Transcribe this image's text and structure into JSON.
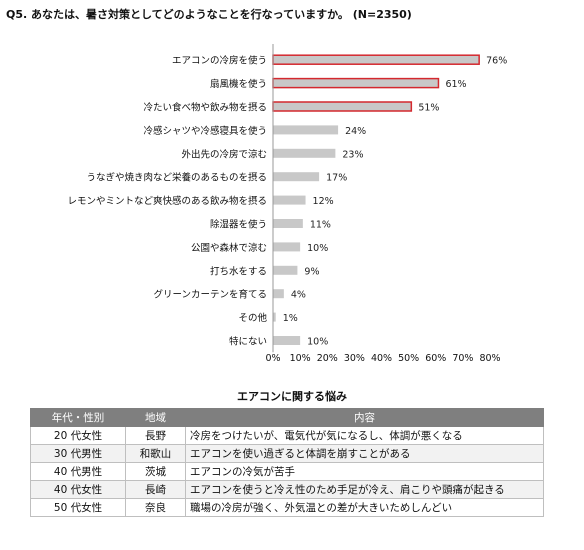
{
  "question": "Q5.  あなたは、暑さ対策としてどのようなことを行なっていますか。  (N=2350)",
  "chart_data": {
    "type": "bar",
    "orientation": "horizontal",
    "categories": [
      "エアコンの冷房を使う",
      "扇風機を使う",
      "冷たい食べ物や飲み物を摂る",
      "冷感シャツや冷感寝具を使う",
      "外出先の冷房で涼む",
      "うなぎや焼き肉など栄養のあるものを摂る",
      "レモンやミントなど爽快感のある飲み物を摂る",
      "除湿器を使う",
      "公園や森林で涼む",
      "打ち水をする",
      "グリーンカーテンを育てる",
      "その他",
      "特にない"
    ],
    "values": [
      76,
      61,
      51,
      24,
      23,
      17,
      12,
      11,
      10,
      9,
      4,
      1,
      10
    ],
    "value_labels": [
      "76%",
      "61%",
      "51%",
      "24%",
      "23%",
      "17%",
      "12%",
      "11%",
      "10%",
      "9%",
      "4%",
      "1%",
      "10%"
    ],
    "highlighted": [
      true,
      true,
      true,
      false,
      false,
      false,
      false,
      false,
      false,
      false,
      false,
      false,
      false
    ],
    "xlim": [
      0,
      80
    ],
    "xticks": [
      "0%",
      "10%",
      "20%",
      "30%",
      "40%",
      "50%",
      "60%",
      "70%",
      "80%"
    ],
    "grid": false,
    "colors": {
      "bar": "#c8c8c8",
      "highlight_border": "#d4282e",
      "axis": "#999999"
    }
  },
  "table": {
    "title": "エアコンに関する悩み",
    "headers": [
      "年代・性別",
      "地域",
      "内容"
    ],
    "rows": [
      [
        "20 代女性",
        "長野",
        "冷房をつけたいが、電気代が気になるし、体調が悪くなる"
      ],
      [
        "30 代男性",
        "和歌山",
        "エアコンを使い過ぎると体調を崩すことがある"
      ],
      [
        "40 代男性",
        "茨城",
        "エアコンの冷気が苦手"
      ],
      [
        "40 代女性",
        "長崎",
        "エアコンを使うと冷え性のため手足が冷え、肩こりや頭痛が起きる"
      ],
      [
        "50 代女性",
        "奈良",
        "職場の冷房が強く、外気温との差が大きいためしんどい"
      ]
    ]
  }
}
